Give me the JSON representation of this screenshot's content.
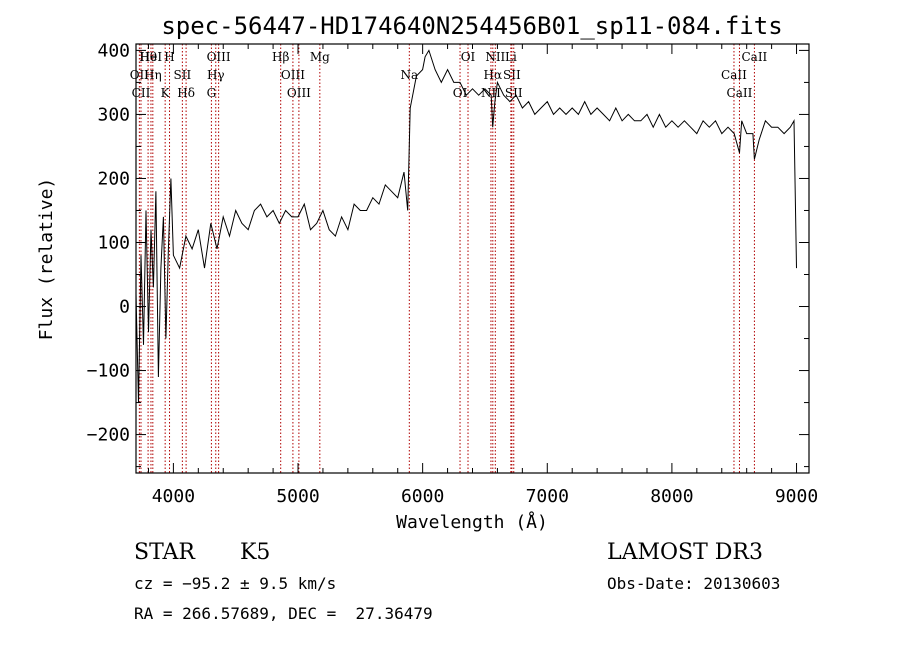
{
  "chart_data": {
    "type": "line",
    "title": "spec-56447-HD174640N254456B01_sp11-084.fits",
    "xlabel": "Wavelength (Å)",
    "ylabel": "Flux (relative)",
    "xlim": [
      3700,
      9100
    ],
    "ylim": [
      -260,
      410
    ],
    "xticks": [
      4000,
      5000,
      6000,
      7000,
      8000,
      9000
    ],
    "yticks": [
      -200,
      -100,
      0,
      100,
      200,
      300,
      400
    ],
    "xtick_labels": [
      "4000",
      "5000",
      "6000",
      "7000",
      "8000",
      "9000"
    ],
    "ytick_labels": [
      "−200",
      "−100",
      "0",
      "100",
      "200",
      "300",
      "400"
    ],
    "series": [
      {
        "x": [
          3700,
          3720,
          3740,
          3760,
          3780,
          3800,
          3820,
          3840,
          3860,
          3880,
          3900,
          3920,
          3940,
          3960,
          3980,
          4000,
          4050,
          4100,
          4150,
          4200,
          4250,
          4300,
          4350,
          4400,
          4450,
          4500,
          4550,
          4600,
          4650,
          4700,
          4750,
          4800,
          4850,
          4900,
          4950,
          5000,
          5050,
          5100,
          5150,
          5200,
          5250,
          5300,
          5350,
          5400,
          5450,
          5500,
          5550,
          5600,
          5650,
          5700,
          5750,
          5800,
          5850,
          5880,
          5900,
          5920,
          5950,
          6000,
          6020,
          6050,
          6100,
          6150,
          6200,
          6250,
          6300,
          6350,
          6400,
          6450,
          6500,
          6550,
          6562,
          6580,
          6600,
          6650,
          6700,
          6750,
          6800,
          6850,
          6900,
          6950,
          7000,
          7050,
          7100,
          7150,
          7200,
          7250,
          7300,
          7350,
          7400,
          7450,
          7500,
          7550,
          7600,
          7650,
          7700,
          7750,
          7800,
          7850,
          7900,
          7950,
          8000,
          8050,
          8100,
          8150,
          8200,
          8250,
          8300,
          8350,
          8400,
          8450,
          8500,
          8542,
          8560,
          8600,
          8650,
          8662,
          8700,
          8750,
          8800,
          8850,
          8900,
          8950,
          8980,
          9000
        ],
        "y": [
          20,
          -150,
          80,
          -60,
          150,
          -40,
          120,
          30,
          180,
          -110,
          60,
          140,
          -50,
          90,
          200,
          80,
          60,
          110,
          90,
          120,
          60,
          130,
          90,
          140,
          110,
          150,
          130,
          120,
          150,
          160,
          140,
          150,
          130,
          150,
          140,
          140,
          160,
          120,
          130,
          150,
          120,
          110,
          140,
          120,
          160,
          150,
          150,
          170,
          160,
          190,
          180,
          170,
          210,
          150,
          310,
          330,
          360,
          370,
          390,
          400,
          370,
          350,
          370,
          350,
          350,
          330,
          340,
          330,
          340,
          330,
          280,
          320,
          350,
          330,
          320,
          330,
          310,
          320,
          300,
          310,
          320,
          300,
          310,
          300,
          310,
          300,
          320,
          300,
          310,
          300,
          290,
          310,
          290,
          300,
          290,
          290,
          300,
          280,
          300,
          280,
          290,
          280,
          290,
          280,
          270,
          290,
          280,
          290,
          270,
          280,
          270,
          240,
          290,
          270,
          270,
          230,
          260,
          290,
          280,
          280,
          270,
          280,
          290,
          60
        ]
      }
    ],
    "spectral_lines": [
      {
        "label": "Hθ",
        "x": 3797
      },
      {
        "label": "OII",
        "x": 3727
      },
      {
        "label": "CII",
        "x": 3740
      },
      {
        "label": "HeI",
        "x": 3820
      },
      {
        "label": "Hη",
        "x": 3835
      },
      {
        "label": "K",
        "x": 3934
      },
      {
        "label": "H",
        "x": 3969
      },
      {
        "label": "SII",
        "x": 4072
      },
      {
        "label": "Hδ",
        "x": 4102
      },
      {
        "label": "OIII",
        "x": 4363
      },
      {
        "label": "Hγ",
        "x": 4340
      },
      {
        "label": "G",
        "x": 4305
      },
      {
        "label": "Hβ",
        "x": 4861
      },
      {
        "label": "OIII",
        "x": 4959
      },
      {
        "label": "OIII",
        "x": 5007
      },
      {
        "label": "Mg",
        "x": 5175
      },
      {
        "label": "Na",
        "x": 5893
      },
      {
        "label": "OI",
        "x": 6300
      },
      {
        "label": "OI",
        "x": 6364
      },
      {
        "label": "Hα",
        "x": 6563
      },
      {
        "label": "NII",
        "x": 6548
      },
      {
        "label": "NII",
        "x": 6583
      },
      {
        "label": "SII",
        "x": 6716
      },
      {
        "label": "SII",
        "x": 6731
      },
      {
        "label": "Li",
        "x": 6708
      },
      {
        "label": "CaII",
        "x": 8498
      },
      {
        "label": "CaII",
        "x": 8542
      },
      {
        "label": "CaII",
        "x": 8662
      }
    ]
  },
  "info": {
    "class": "STAR",
    "subclass": "K5",
    "survey": "LAMOST DR3",
    "cz": "cz = −95.2 ± 9.5 km/s",
    "obsdate": "Obs-Date: 20130603",
    "radec": "RA = 266.57689, DEC =  27.36479"
  }
}
